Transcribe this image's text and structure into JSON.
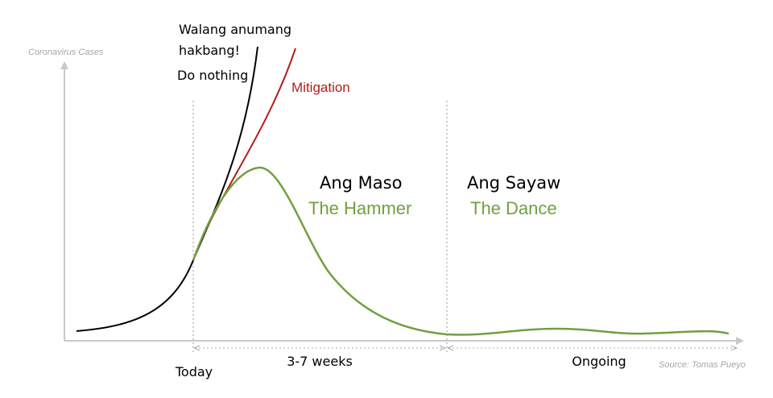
{
  "diagram": {
    "y_axis_label": "Coronavirus Cases",
    "do_nothing_tagalog": [
      "Walang anumang",
      "hakbang!"
    ],
    "do_nothing": "Do nothing",
    "mitigation": "Mitigation",
    "hammer_tagalog": "Ang Maso",
    "hammer": "The Hammer",
    "dance_tagalog": "Ang Sayaw",
    "dance": "The Dance",
    "today": "Today",
    "hammer_duration": "3-7 weeks",
    "dance_duration": "Ongoing",
    "source": "Source: Tomas Pueyo"
  }
}
